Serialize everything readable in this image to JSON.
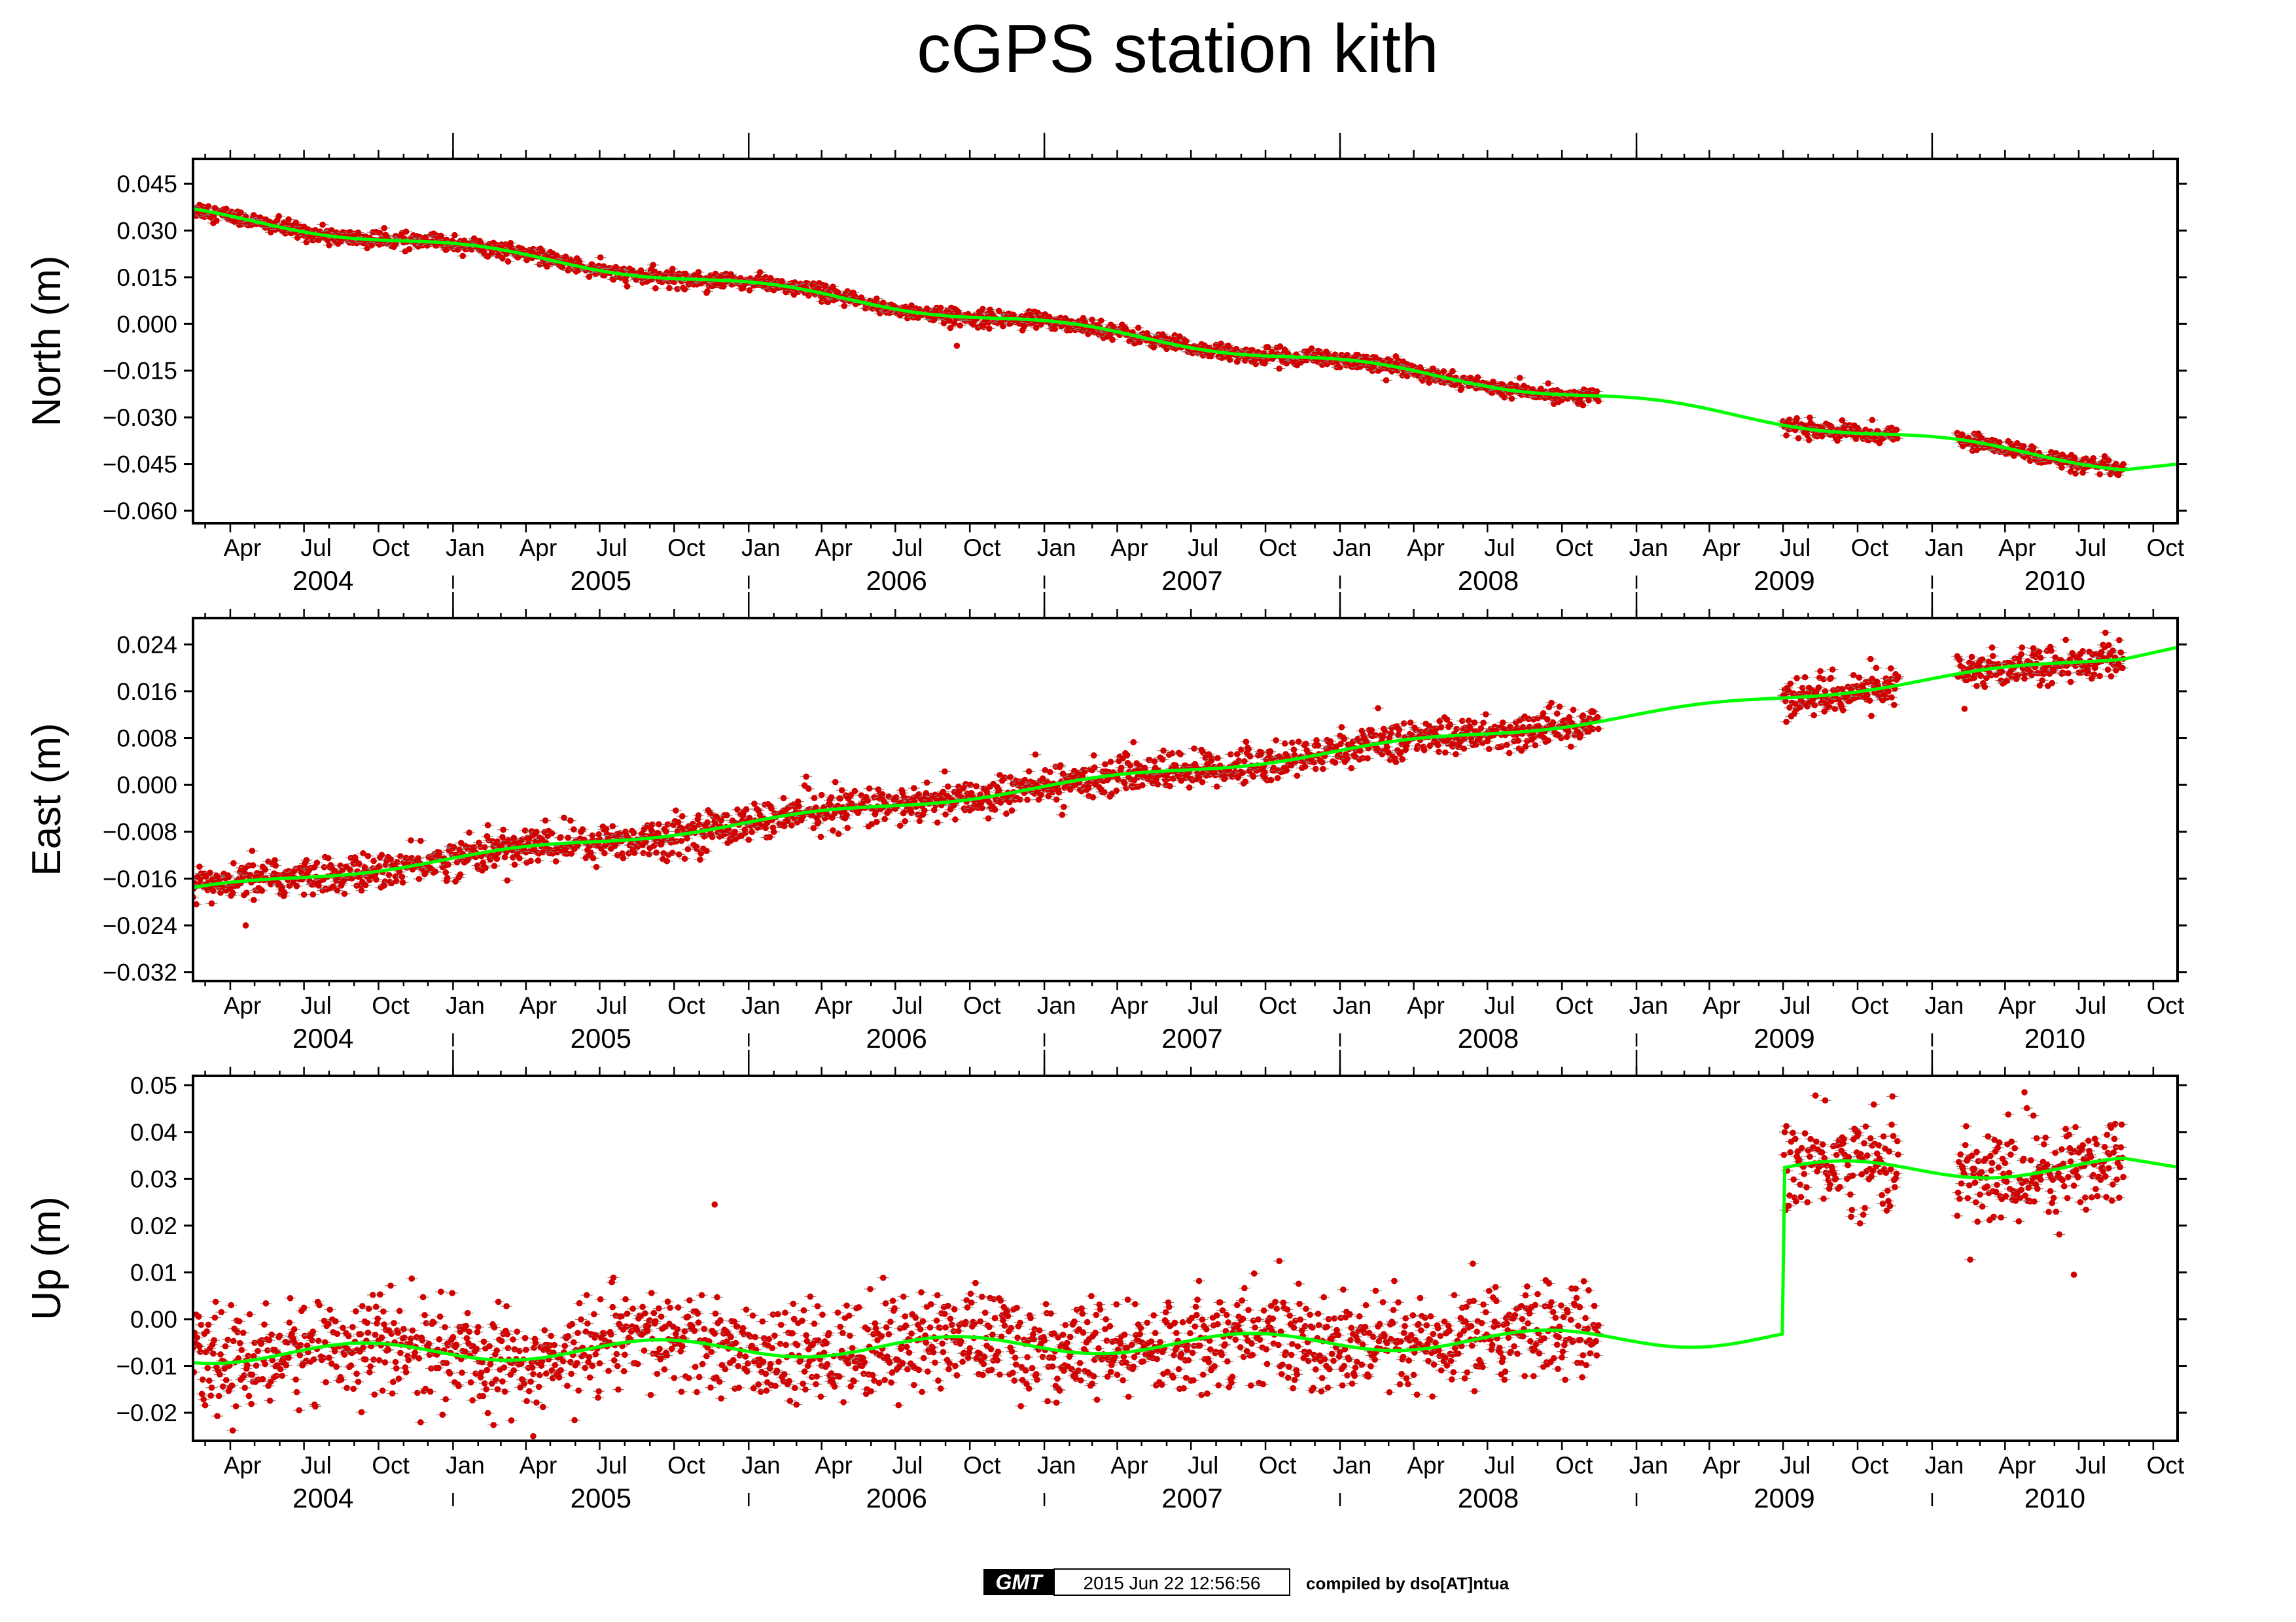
{
  "chart_data": {
    "title": "cGPS station kith",
    "footer": {
      "logo_text": "GMT",
      "timestamp": "2015 Jun 22 12:56:56",
      "credit": "compiled by dso[AT]ntua"
    },
    "colors": {
      "observations": "#d40000",
      "model": "#00ff00",
      "error_bars": "#888888",
      "frame": "#000000"
    },
    "x_axis": {
      "type": "date",
      "range": [
        "2004-02-15",
        "2010-10-31"
      ],
      "month_labels": [
        "Jan",
        "Apr",
        "Jul",
        "Oct"
      ],
      "year_labels": [
        "2004",
        "2005",
        "2006",
        "2007",
        "2008",
        "2009",
        "2010"
      ],
      "year_boundaries": [
        "2005-01-01",
        "2006-01-01",
        "2007-01-01",
        "2008-01-01",
        "2009-01-01",
        "2010-01-01"
      ]
    },
    "charts": [
      {
        "name": "north",
        "type": "scatter",
        "ylabel": "North (m)",
        "ylim": [
          -0.064,
          0.053
        ],
        "yticks": [
          "0.045",
          "0.030",
          "0.015",
          "0.000",
          "-0.015",
          "-0.030",
          "-0.045",
          "-0.060"
        ],
        "data_segments": [
          [
            "2004-02-15",
            "2008-11-15"
          ],
          [
            "2009-07-01",
            "2009-11-20"
          ],
          [
            "2010-02-01",
            "2010-08-25"
          ]
        ],
        "trend": {
          "value_at_start": 0.0355,
          "value_at_end": -0.0455,
          "start": "2004-02-15",
          "end": "2010-08-25"
        },
        "seasonal": {
          "amplitude": 0.0015,
          "phase_deg": 60
        },
        "noise_sigma": 0.0013,
        "outliers": [
          [
            "2006-09-15",
            -0.007
          ],
          [
            "2005-11-10",
            0.01
          ]
        ],
        "model_end": -0.045
      },
      {
        "name": "east",
        "type": "scatter",
        "ylabel": "East (m)",
        "ylim": [
          -0.0335,
          0.0285
        ],
        "yticks": [
          "0.024",
          "0.016",
          "0.008",
          "0.000",
          "-0.008",
          "-0.016",
          "-0.024",
          "-0.032"
        ],
        "data_segments": [
          [
            "2004-02-15",
            "2008-11-15"
          ],
          [
            "2009-07-01",
            "2009-11-20"
          ],
          [
            "2010-02-01",
            "2010-08-25"
          ]
        ],
        "trend": {
          "value_at_start": -0.018,
          "value_at_end": 0.022,
          "start": "2004-02-15",
          "end": "2010-08-25"
        },
        "seasonal": {
          "amplitude": 0.0006,
          "phase_deg": 10
        },
        "noise_sigma": 0.0016,
        "outliers": [
          [
            "2004-04-20",
            -0.024
          ],
          [
            "2010-02-10",
            0.013
          ]
        ],
        "model_end": 0.0235
      },
      {
        "name": "up",
        "type": "scatter",
        "ylabel": "Up (m)",
        "ylim": [
          -0.026,
          0.052
        ],
        "yticks": [
          "0.05",
          "0.04",
          "0.03",
          "0.02",
          "0.01",
          "0.00",
          "-0.01",
          "-0.02"
        ],
        "data_segments": [
          [
            "2004-02-15",
            "2008-11-15"
          ],
          [
            "2009-07-01",
            "2009-11-20"
          ],
          [
            "2010-02-01",
            "2010-08-25"
          ]
        ],
        "trend": {
          "value_at_start": -0.0075,
          "value_at_end": -0.003,
          "start": "2004-02-15",
          "end": "2010-08-25"
        },
        "offset": {
          "date": "2009-07-01",
          "size": 0.0355
        },
        "seasonal": {
          "amplitude": 0.002,
          "phase_deg": 200
        },
        "noise_sigma": 0.0052,
        "outliers": [
          [
            "2005-11-20",
            0.0245
          ],
          [
            "2005-04-10",
            -0.025
          ],
          [
            "2010-06-25",
            0.0095
          ],
          [
            "2010-04-25",
            0.0485
          ]
        ],
        "model_end": 0.0325
      }
    ]
  }
}
